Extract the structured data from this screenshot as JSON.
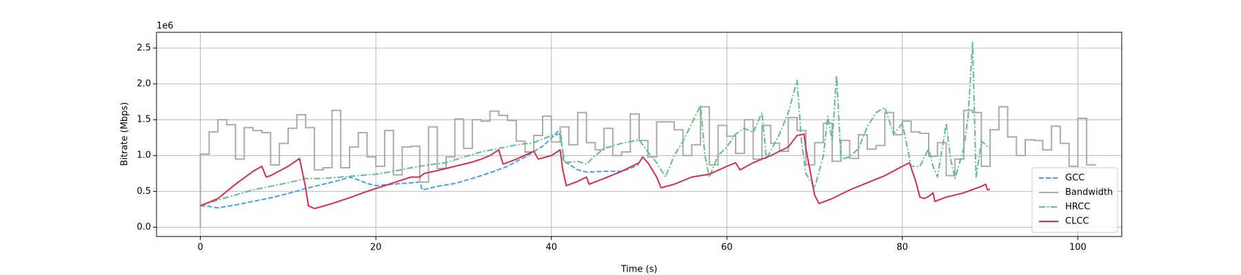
{
  "chart_data": {
    "type": "line",
    "xlabel": "Time (s)",
    "ylabel": "Bitrate (Mbps)",
    "y_offset_label": "1e6",
    "xlim": [
      -5,
      105
    ],
    "ylim": [
      -130000,
      2720000
    ],
    "xticks": [
      0,
      20,
      40,
      60,
      80,
      100
    ],
    "yticks": [
      {
        "value": 0,
        "label": "0.0"
      },
      {
        "value": 500000,
        "label": "0.5"
      },
      {
        "value": 1000000,
        "label": "1.0"
      },
      {
        "value": 1500000,
        "label": "1.5"
      },
      {
        "value": 2000000,
        "label": "2.0"
      },
      {
        "value": 2500000,
        "label": "2.5"
      }
    ],
    "grid": true,
    "legend": "lower right",
    "series": [
      {
        "name": "GCC",
        "color": "#42a0f0",
        "linestyle": "dashed",
        "x": [
          0,
          1,
          2,
          4,
          6,
          8,
          10,
          12,
          14,
          16,
          17,
          18,
          19,
          20,
          22,
          24,
          25,
          25.3,
          27,
          29,
          31,
          33,
          35,
          37,
          39,
          40,
          41,
          41.4,
          42,
          43,
          44,
          46,
          48,
          49,
          50
        ],
        "values": [
          300000,
          290000,
          270000,
          310000,
          360000,
          410000,
          470000,
          540000,
          600000,
          660000,
          700000,
          660000,
          610000,
          580000,
          600000,
          620000,
          630000,
          520000,
          570000,
          610000,
          680000,
          760000,
          850000,
          980000,
          1130000,
          1240000,
          1370000,
          920000,
          880000,
          800000,
          770000,
          780000,
          780000,
          820000,
          880000
        ]
      },
      {
        "name": "Bandwidth",
        "color": "#aaaaaa",
        "linestyle": "steps",
        "x": [
          0,
          0,
          1,
          2,
          3,
          4,
          5,
          6,
          7,
          8,
          9,
          10,
          11,
          12,
          13,
          14,
          15,
          16,
          17,
          18,
          19,
          20,
          21,
          22,
          23,
          24,
          25,
          26,
          27,
          28,
          29,
          30,
          31,
          32,
          33,
          34,
          35,
          36,
          37,
          38,
          39,
          40,
          41,
          42,
          43,
          44,
          45,
          46,
          47,
          48,
          49,
          50,
          51,
          52,
          53,
          54,
          55,
          56,
          57,
          58,
          59,
          60,
          61,
          62,
          63,
          64,
          65,
          66,
          67,
          68,
          69,
          70,
          71,
          72,
          73,
          74,
          75,
          76,
          77,
          78,
          79,
          80,
          81,
          82,
          83,
          84,
          85,
          86,
          87,
          88,
          89,
          90,
          91,
          92,
          93,
          94,
          95,
          96,
          97,
          98,
          99,
          100,
          101,
          102
        ],
        "values": [
          0,
          1020000,
          1330000,
          1500000,
          1430000,
          950000,
          1390000,
          1350000,
          1320000,
          870000,
          1170000,
          1380000,
          1570000,
          1390000,
          800000,
          830000,
          1630000,
          830000,
          1120000,
          1320000,
          980000,
          850000,
          1350000,
          730000,
          1120000,
          1130000,
          630000,
          1400000,
          820000,
          980000,
          1510000,
          1100000,
          1500000,
          1480000,
          1620000,
          1560000,
          1490000,
          1200000,
          1050000,
          1280000,
          1550000,
          1190000,
          1400000,
          1150000,
          1600000,
          1180000,
          1080000,
          1380000,
          1000000,
          1050000,
          1580000,
          1210000,
          980000,
          1470000,
          1470000,
          1360000,
          1000000,
          1150000,
          1680000,
          870000,
          1420000,
          1270000,
          1030000,
          1500000,
          950000,
          1420000,
          1170000,
          1060000,
          1530000,
          1350000,
          870000,
          1180000,
          1450000,
          920000,
          1210000,
          960000,
          1290000,
          1090000,
          1140000,
          1600000,
          1290000,
          1480000,
          1330000,
          1310000,
          990000,
          1180000,
          720000,
          950000,
          1630000,
          1600000,
          850000,
          1360000,
          1680000,
          1260000,
          1000000,
          1220000,
          1210000,
          1080000,
          1410000,
          1170000,
          850000,
          1520000,
          870000,
          870000
        ]
      },
      {
        "name": "HRCC",
        "color": "#5cbf85",
        "linestyle": "dashdot",
        "x": [
          0,
          2,
          4,
          6,
          8,
          10,
          12,
          14,
          16,
          18,
          20,
          22,
          24,
          26,
          28,
          30,
          32,
          34,
          36,
          38,
          40,
          41,
          41.5,
          43,
          44,
          45,
          46,
          48,
          50,
          51,
          52,
          53,
          54,
          55,
          56,
          57,
          57.5,
          58,
          59,
          60,
          61,
          62,
          63,
          64,
          64.5,
          66,
          67,
          68,
          68.5,
          69,
          70,
          71,
          71.5,
          72,
          72.5,
          73,
          74,
          75,
          76,
          77,
          78,
          79,
          80,
          81,
          82,
          83,
          83.5,
          84,
          85,
          85.5,
          86,
          87,
          87.5,
          88,
          88.4,
          89,
          90
        ],
        "values": [
          300000,
          380000,
          450000,
          520000,
          570000,
          620000,
          680000,
          680000,
          700000,
          720000,
          740000,
          780000,
          830000,
          870000,
          900000,
          980000,
          1050000,
          1100000,
          1150000,
          1180000,
          1280000,
          1300000,
          900000,
          920000,
          880000,
          1000000,
          1100000,
          1170000,
          1220000,
          1050000,
          900000,
          700000,
          1000000,
          1200000,
          1450000,
          1700000,
          1000000,
          700000,
          1000000,
          1120000,
          1300000,
          1380000,
          1320000,
          1600000,
          950000,
          1300000,
          1600000,
          2050000,
          1200000,
          750000,
          550000,
          1000000,
          1550000,
          1200000,
          2120000,
          950000,
          980000,
          1100000,
          1400000,
          1600000,
          1670000,
          1300000,
          1450000,
          850000,
          850000,
          1100000,
          850000,
          700000,
          1450000,
          950000,
          680000,
          1100000,
          1550000,
          2580000,
          700000,
          1200000,
          1100000
        ]
      },
      {
        "name": "CLCC",
        "color": "#dc2a50",
        "linestyle": "solid",
        "x": [
          0,
          2,
          4,
          6,
          7,
          7.5,
          8,
          10,
          11.3,
          12,
          12.3,
          13,
          15,
          17,
          19,
          21,
          23,
          24,
          25,
          25.5,
          27,
          29,
          31,
          32,
          33,
          34,
          34.5,
          36,
          38,
          38.5,
          40,
          41,
          41.3,
          41.7,
          43,
          44,
          44.3,
          46,
          48,
          50,
          50.4,
          51,
          52,
          52.5,
          54,
          56,
          58,
          60,
          61,
          61.5,
          63,
          65,
          67,
          68,
          68.8,
          69,
          70,
          70.5,
          72,
          74,
          76,
          78,
          80,
          80.8,
          81.5,
          82,
          82.5,
          83,
          83.5,
          83.7,
          85,
          87,
          89,
          89.5,
          89.7,
          90
        ],
        "values": [
          300000,
          400000,
          600000,
          780000,
          850000,
          700000,
          720000,
          850000,
          960000,
          550000,
          300000,
          260000,
          330000,
          410000,
          500000,
          580000,
          660000,
          700000,
          700000,
          750000,
          790000,
          850000,
          910000,
          950000,
          1000000,
          1080000,
          880000,
          950000,
          1060000,
          950000,
          1000000,
          1080000,
          800000,
          580000,
          640000,
          700000,
          600000,
          680000,
          780000,
          900000,
          980000,
          900000,
          700000,
          550000,
          600000,
          700000,
          740000,
          850000,
          900000,
          800000,
          900000,
          1000000,
          1120000,
          1280000,
          1300000,
          1100000,
          450000,
          330000,
          400000,
          520000,
          620000,
          720000,
          850000,
          900000,
          650000,
          420000,
          400000,
          430000,
          480000,
          360000,
          420000,
          480000,
          570000,
          600000,
          520000,
          530000
        ]
      }
    ]
  }
}
